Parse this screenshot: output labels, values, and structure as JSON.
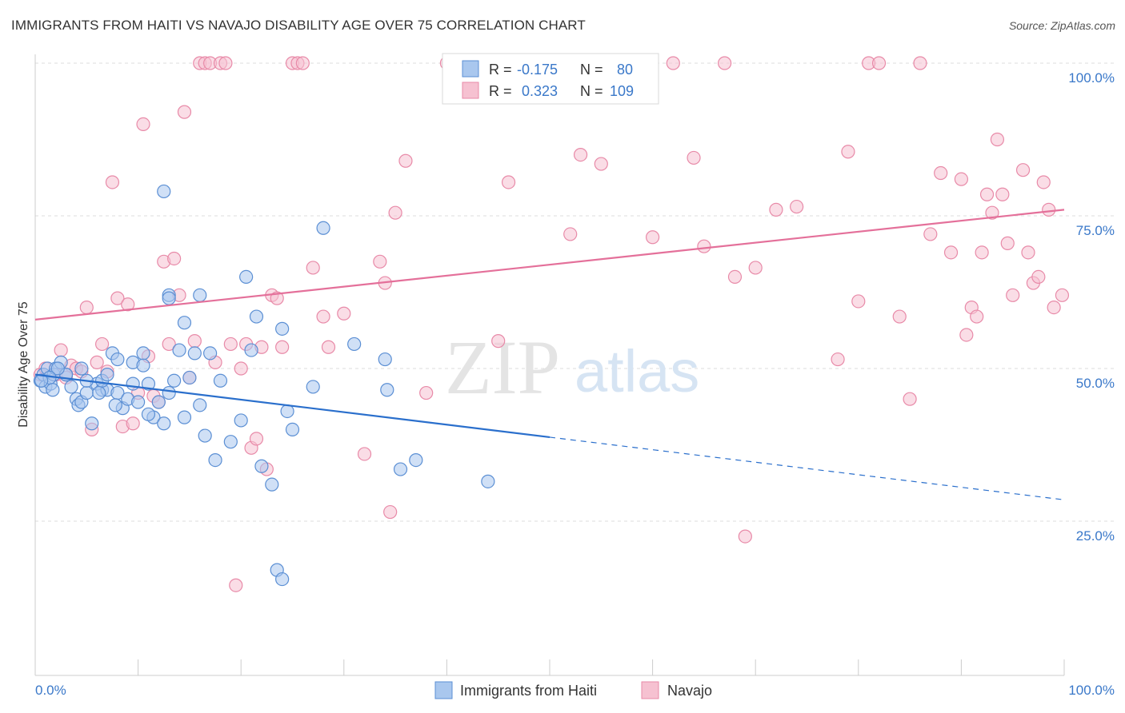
{
  "title": "IMMIGRANTS FROM HAITI VS NAVAJO DISABILITY AGE OVER 75 CORRELATION CHART",
  "source": "Source: ZipAtlas.com",
  "watermark": {
    "zip": "ZIP",
    "atlas": "atlas"
  },
  "colors": {
    "blue_fill": "#a9c7ee",
    "blue_stroke": "#5b8fd4",
    "blue_line": "#2a6fcc",
    "pink_fill": "#f6c1d1",
    "pink_stroke": "#e88aa8",
    "pink_line": "#e4709a",
    "grid": "#dddddd",
    "axis_text": "#3a78c9"
  },
  "legend": {
    "r_label": "R =",
    "n_label": "N =",
    "rows": [
      {
        "r": "-0.175",
        "n": "80"
      },
      {
        "r": "0.323",
        "n": "109"
      }
    ]
  },
  "chart_data": {
    "type": "scatter",
    "title": "IMMIGRANTS FROM HAITI VS NAVAJO DISABILITY AGE OVER 75 CORRELATION CHART",
    "xlabel": "",
    "ylabel": "Disability Age Over 75",
    "xlim": [
      0,
      100
    ],
    "ylim": [
      0,
      102
    ],
    "x_tick_labels": [
      "0.0%",
      "100.0%"
    ],
    "y_ticks": [
      25,
      50,
      75,
      100
    ],
    "y_tick_labels": [
      "25.0%",
      "50.0%",
      "75.0%",
      "100.0%"
    ],
    "grid": "horizontal dashed",
    "legend_placement": "top-center",
    "series": [
      {
        "name": "Immigrants from Haiti",
        "color": "#5b8fd4",
        "r": -0.175,
        "n": 80,
        "trend": {
          "x0": 0,
          "y0": 49,
          "x1": 100,
          "y1": 28.5,
          "solid_until_x": 50
        },
        "points": [
          [
            0.5,
            48
          ],
          [
            0.8,
            49
          ],
          [
            1,
            47
          ],
          [
            1.2,
            50
          ],
          [
            1.5,
            47.5
          ],
          [
            1.8,
            49
          ],
          [
            2,
            50
          ],
          [
            2.5,
            51
          ],
          [
            3,
            49
          ],
          [
            3.5,
            47
          ],
          [
            4,
            45
          ],
          [
            4.2,
            44
          ],
          [
            4.5,
            44.5
          ],
          [
            5,
            46
          ],
          [
            5.5,
            41
          ],
          [
            6,
            47.5
          ],
          [
            6.5,
            46.5
          ],
          [
            7,
            46.5
          ],
          [
            7.5,
            52.5
          ],
          [
            8,
            46
          ],
          [
            8.5,
            43.5
          ],
          [
            9,
            45
          ],
          [
            9.5,
            47.5
          ],
          [
            10,
            44.5
          ],
          [
            10.5,
            52.5
          ],
          [
            11,
            47.5
          ],
          [
            11.5,
            42
          ],
          [
            12,
            44.5
          ],
          [
            12.5,
            41
          ],
          [
            13,
            46
          ],
          [
            13.5,
            48
          ],
          [
            14,
            53
          ],
          [
            14.5,
            42
          ],
          [
            15,
            48.5
          ],
          [
            15.5,
            52.5
          ],
          [
            16,
            44
          ],
          [
            16.5,
            39
          ],
          [
            17,
            52.5
          ],
          [
            17.5,
            35
          ],
          [
            18,
            48
          ],
          [
            19,
            38
          ],
          [
            20,
            41.5
          ],
          [
            21,
            53
          ],
          [
            22,
            34
          ],
          [
            23,
            31
          ],
          [
            23.5,
            17
          ],
          [
            24,
            15.5
          ],
          [
            24.5,
            43
          ],
          [
            25,
            40
          ],
          [
            27,
            47
          ],
          [
            20.5,
            65
          ],
          [
            21.5,
            58.5
          ],
          [
            24,
            56.5
          ],
          [
            31,
            54
          ],
          [
            34,
            51.5
          ],
          [
            34.2,
            46.5
          ],
          [
            28,
            73
          ],
          [
            12.5,
            79
          ],
          [
            13,
            62
          ],
          [
            14.5,
            57.5
          ],
          [
            16,
            62
          ],
          [
            35.5,
            33.5
          ],
          [
            37,
            35
          ],
          [
            44,
            31.5
          ],
          [
            9.5,
            51
          ],
          [
            10.5,
            50.5
          ],
          [
            6.5,
            48
          ],
          [
            11,
            42.5
          ],
          [
            13,
            61.5
          ],
          [
            8,
            51.5
          ],
          [
            7,
            49
          ],
          [
            3,
            49
          ],
          [
            5,
            48
          ],
          [
            2.2,
            50
          ],
          [
            1.4,
            48.5
          ],
          [
            0.6,
            48
          ],
          [
            1.7,
            46.5
          ],
          [
            4.5,
            50
          ],
          [
            6.2,
            46
          ],
          [
            7.8,
            44
          ]
        ]
      },
      {
        "name": "Navajo",
        "color": "#e88aa8",
        "r": 0.323,
        "n": 109,
        "trend": {
          "x0": 0,
          "y0": 58,
          "x1": 100,
          "y1": 76
        },
        "points": [
          [
            0.5,
            49
          ],
          [
            1,
            50
          ],
          [
            2,
            49
          ],
          [
            2.5,
            53
          ],
          [
            3,
            48.5
          ],
          [
            3.5,
            50.5
          ],
          [
            4,
            50
          ],
          [
            4.5,
            49.5
          ],
          [
            5,
            60
          ],
          [
            5.5,
            40
          ],
          [
            6,
            51
          ],
          [
            6.5,
            54
          ],
          [
            7,
            49.5
          ],
          [
            7.5,
            80.5
          ],
          [
            8,
            61.5
          ],
          [
            8.5,
            40.5
          ],
          [
            9,
            60.5
          ],
          [
            9.5,
            41
          ],
          [
            10,
            46
          ],
          [
            10.5,
            90
          ],
          [
            11,
            52
          ],
          [
            11.5,
            45.5
          ],
          [
            12,
            44.5
          ],
          [
            12.5,
            67.5
          ],
          [
            13,
            54
          ],
          [
            13.5,
            68
          ],
          [
            14,
            62
          ],
          [
            14.5,
            92
          ],
          [
            15,
            48.5
          ],
          [
            15.5,
            54.5
          ],
          [
            16,
            100
          ],
          [
            16.5,
            100
          ],
          [
            17,
            100
          ],
          [
            17.5,
            51
          ],
          [
            18,
            100
          ],
          [
            18.5,
            100
          ],
          [
            19,
            54
          ],
          [
            19.5,
            14.5
          ],
          [
            20,
            50
          ],
          [
            20.5,
            54
          ],
          [
            21,
            37
          ],
          [
            21.5,
            38.5
          ],
          [
            22,
            53.5
          ],
          [
            22.5,
            33.5
          ],
          [
            23,
            62
          ],
          [
            23.5,
            61.5
          ],
          [
            24,
            53.5
          ],
          [
            25,
            100
          ],
          [
            25.5,
            100
          ],
          [
            26,
            100
          ],
          [
            27,
            66.5
          ],
          [
            28,
            58.5
          ],
          [
            28.5,
            53.5
          ],
          [
            30,
            59
          ],
          [
            32,
            36
          ],
          [
            33.5,
            67.5
          ],
          [
            34,
            64
          ],
          [
            34.5,
            26.5
          ],
          [
            35,
            75.5
          ],
          [
            36,
            84
          ],
          [
            38,
            46
          ],
          [
            40,
            100
          ],
          [
            45,
            54.5
          ],
          [
            46,
            80.5
          ],
          [
            50,
            100
          ],
          [
            52,
            72
          ],
          [
            53,
            85
          ],
          [
            55,
            83.5
          ],
          [
            58,
            100
          ],
          [
            60,
            71.5
          ],
          [
            62,
            100
          ],
          [
            64,
            84.5
          ],
          [
            65,
            70
          ],
          [
            67,
            100
          ],
          [
            68,
            65
          ],
          [
            69,
            22.5
          ],
          [
            70,
            66.5
          ],
          [
            72,
            76
          ],
          [
            74,
            76.5
          ],
          [
            78,
            51.5
          ],
          [
            79,
            85.5
          ],
          [
            80,
            61
          ],
          [
            81,
            100
          ],
          [
            82,
            100
          ],
          [
            84,
            58.5
          ],
          [
            85,
            45
          ],
          [
            86,
            100
          ],
          [
            87,
            72
          ],
          [
            88,
            82
          ],
          [
            89,
            69
          ],
          [
            90,
            81
          ],
          [
            90.5,
            55.5
          ],
          [
            91,
            60
          ],
          [
            91.5,
            58.5
          ],
          [
            92,
            69
          ],
          [
            92.5,
            78.5
          ],
          [
            93,
            75.5
          ],
          [
            93.5,
            87.5
          ],
          [
            94,
            78.5
          ],
          [
            94.5,
            70.5
          ],
          [
            95,
            62
          ],
          [
            96,
            82.5
          ],
          [
            96.5,
            69
          ],
          [
            97,
            64
          ],
          [
            97.5,
            65
          ],
          [
            98,
            80.5
          ],
          [
            98.5,
            76
          ],
          [
            99,
            60
          ],
          [
            99.8,
            62
          ]
        ]
      }
    ]
  }
}
